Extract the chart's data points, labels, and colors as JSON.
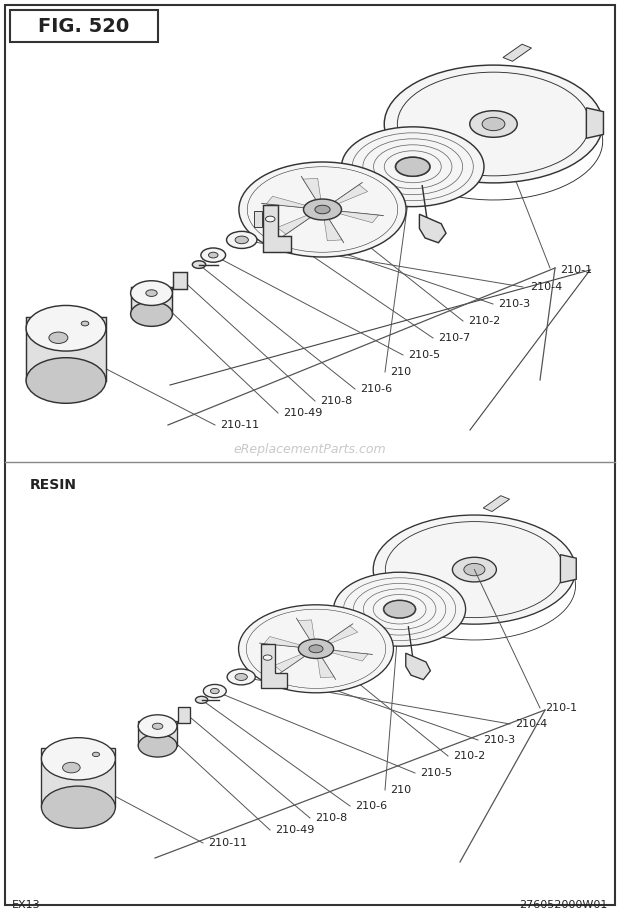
{
  "title": "FIG. 520",
  "watermark": "eReplacementParts.com",
  "footer_left": "EX13",
  "footer_right": "276052000W01",
  "section2_label": "RESIN",
  "bg_color": "#ffffff",
  "border_color": "#333333",
  "line_color": "#555555",
  "divider_color": "#888888",
  "text_color": "#222222",
  "part_edge": "#333333",
  "part_face_light": "#f5f5f5",
  "part_face_mid": "#e0e0e0",
  "part_face_dark": "#c8c8c8",
  "lw_thick": 1.1,
  "lw_thin": 0.7,
  "lw_leader": 0.8,
  "title_fontsize": 14,
  "label_fontsize": 8,
  "resin_fontsize": 10,
  "footer_fontsize": 8,
  "watermark_fontsize": 9
}
